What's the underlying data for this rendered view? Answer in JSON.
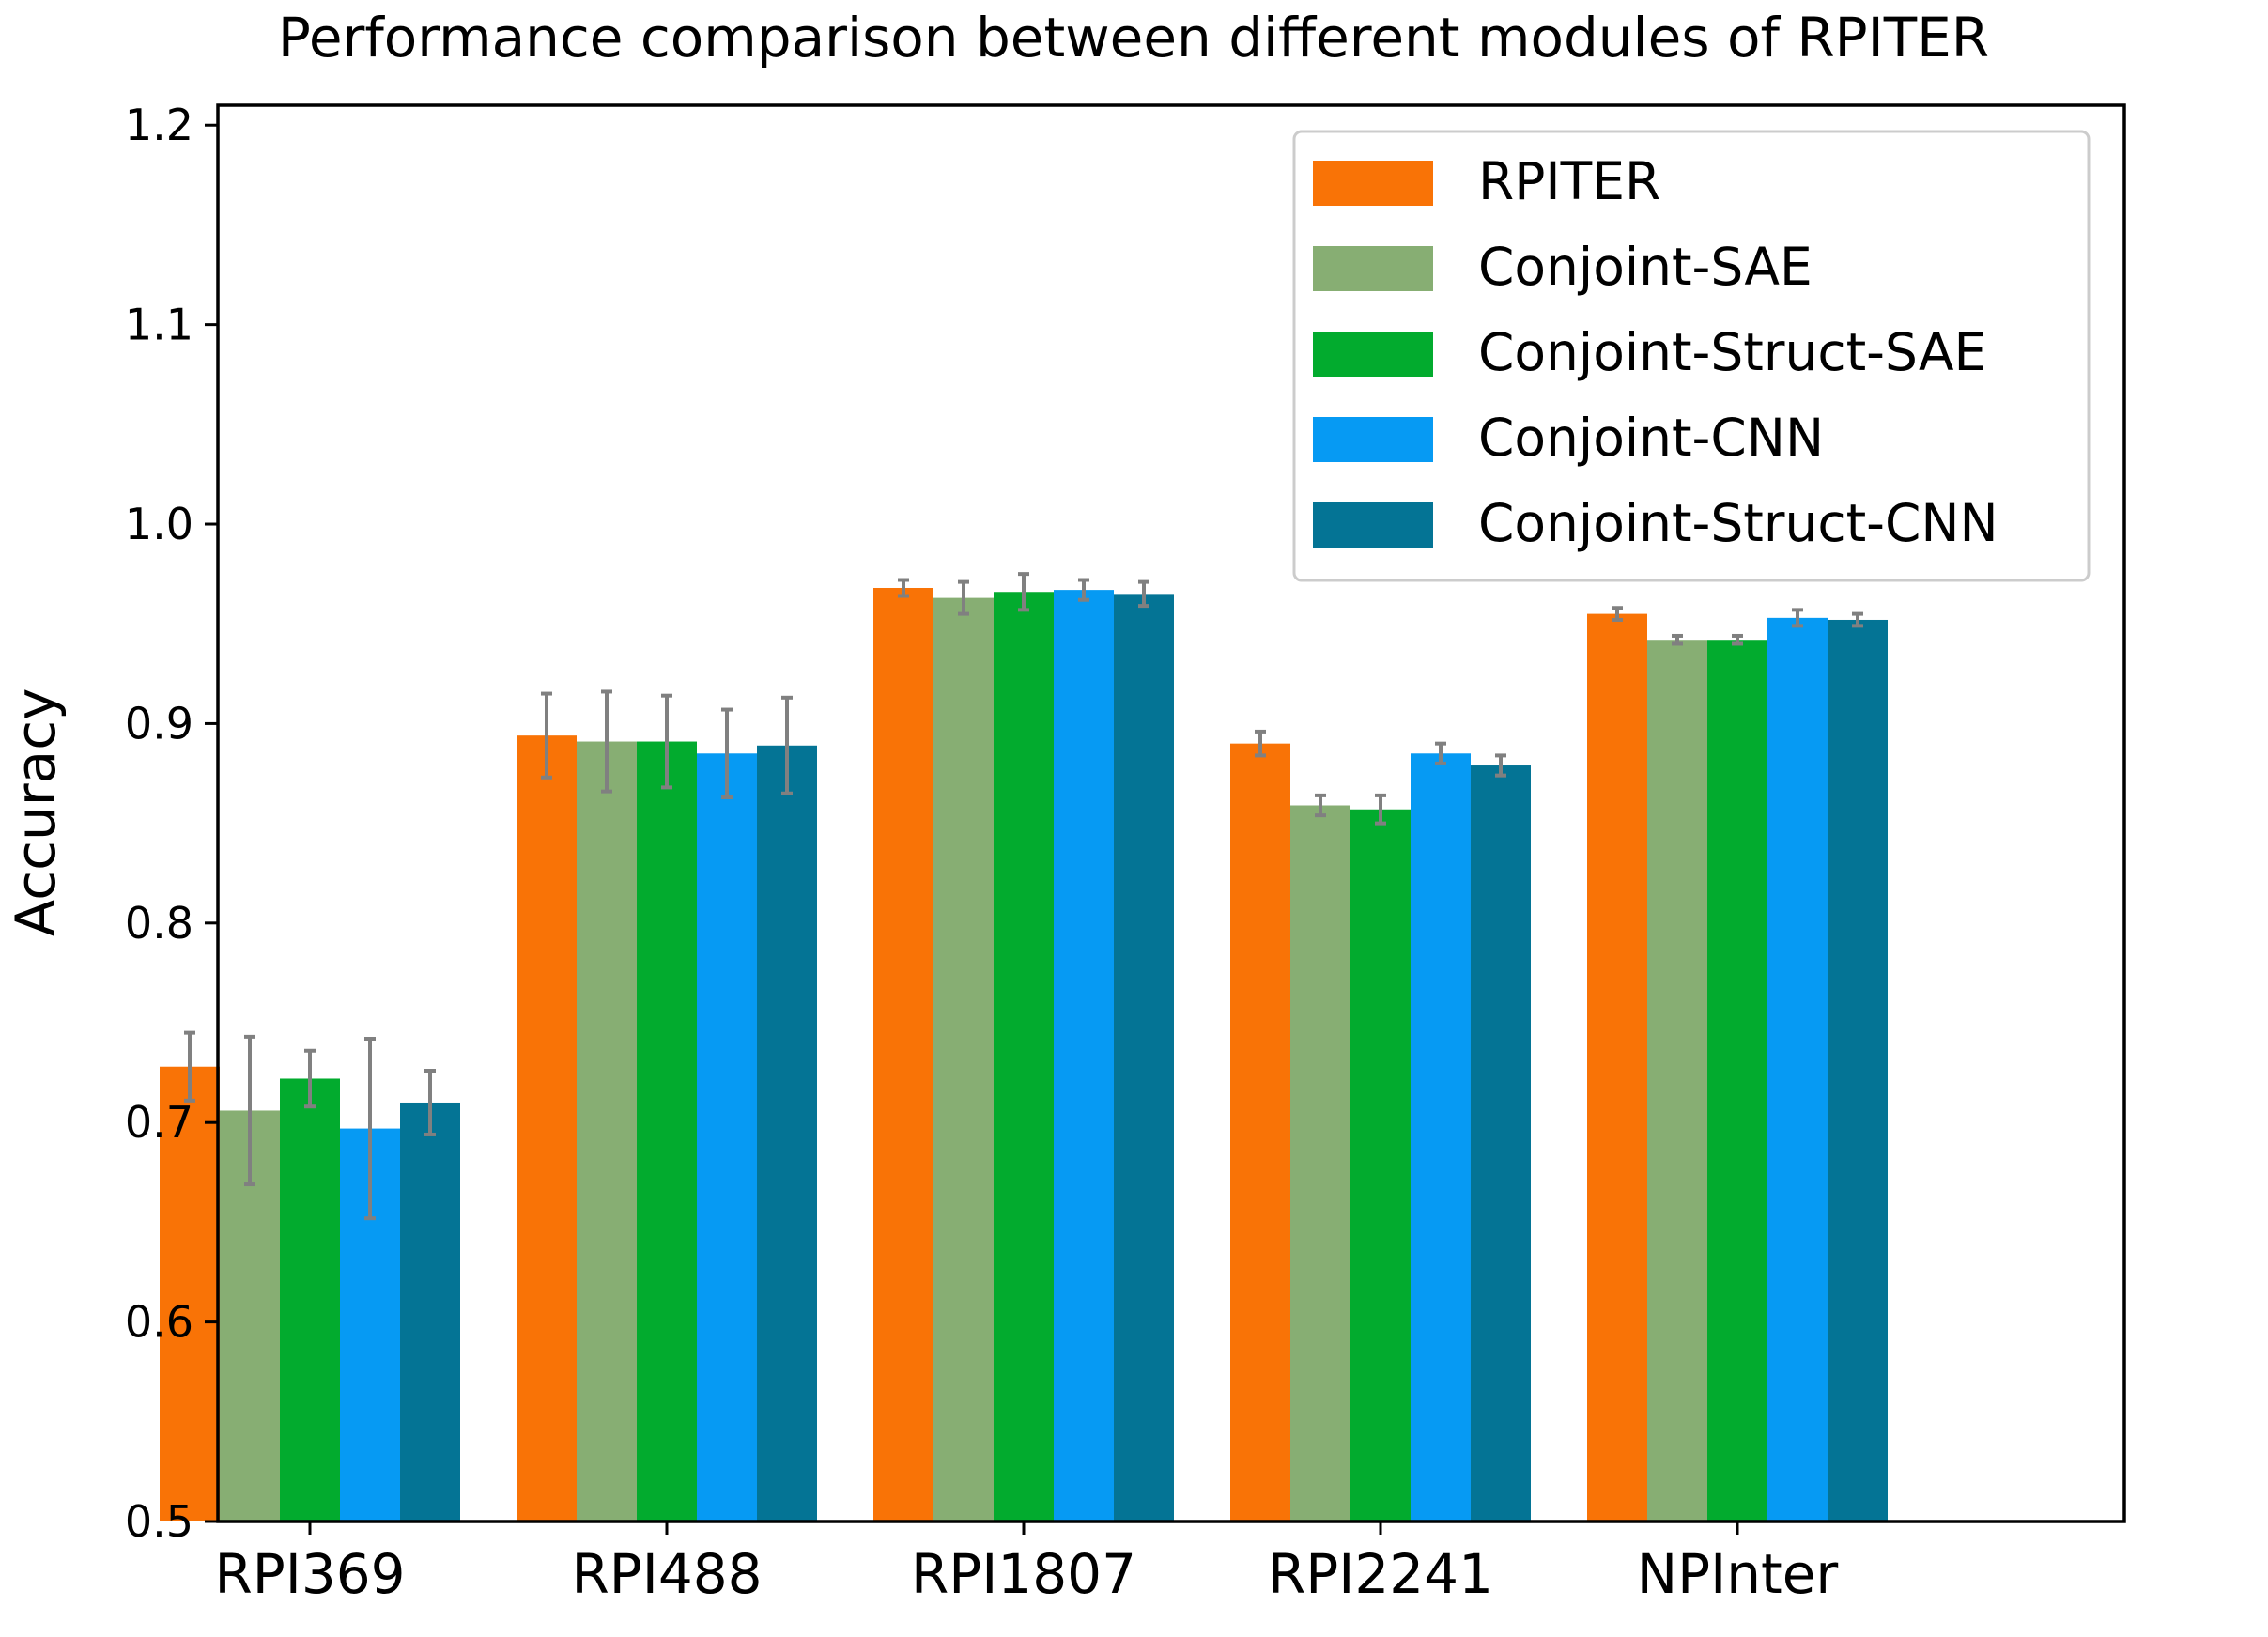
{
  "chart_data": {
    "type": "bar",
    "title": "Performance comparison between different modules of RPITER",
    "xlabel": "",
    "ylabel": "Accuracy",
    "ylim": [
      0.5,
      1.21
    ],
    "yticks": [
      0.5,
      0.6,
      0.7,
      0.8,
      0.9,
      1.0,
      1.1,
      1.2
    ],
    "ytick_labels": [
      "0.5",
      "0.6",
      "0.7",
      "0.8",
      "0.9",
      "1.0",
      "1.1",
      "1.2"
    ],
    "grid": false,
    "legend_position": "top-right",
    "categories": [
      "RPI369",
      "RPI488",
      "RPI1807",
      "RPI2241",
      "NPInter"
    ],
    "series": [
      {
        "name": "RPITER",
        "color": "#f97306",
        "values": [
          0.728,
          0.894,
          0.968,
          0.89,
          0.955
        ],
        "errors": [
          0.017,
          0.021,
          0.004,
          0.006,
          0.003
        ]
      },
      {
        "name": "Conjoint-SAE",
        "color": "#87ae73",
        "values": [
          0.706,
          0.891,
          0.963,
          0.859,
          0.942
        ],
        "errors": [
          0.037,
          0.025,
          0.008,
          0.005,
          0.002
        ]
      },
      {
        "name": "Conjoint-Struct-SAE",
        "color": "#02ab2e",
        "values": [
          0.722,
          0.891,
          0.966,
          0.857,
          0.942
        ],
        "errors": [
          0.014,
          0.023,
          0.009,
          0.007,
          0.002
        ]
      },
      {
        "name": "Conjoint-CNN",
        "color": "#069af3",
        "values": [
          0.697,
          0.885,
          0.967,
          0.885,
          0.953
        ],
        "errors": [
          0.045,
          0.022,
          0.005,
          0.005,
          0.004
        ]
      },
      {
        "name": "Conjoint-Struct-CNN",
        "color": "#047495",
        "values": [
          0.71,
          0.889,
          0.965,
          0.879,
          0.952
        ],
        "errors": [
          0.016,
          0.024,
          0.006,
          0.005,
          0.003
        ]
      }
    ],
    "errorbar_color": "#808080"
  }
}
